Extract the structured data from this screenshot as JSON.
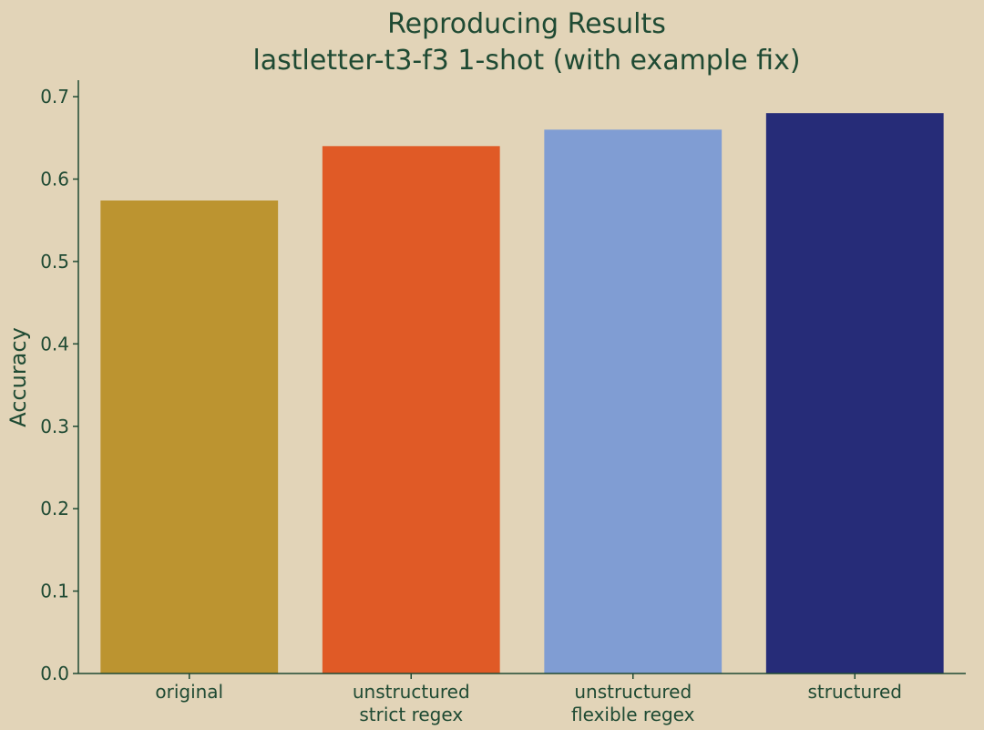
{
  "chart_data": {
    "type": "bar",
    "title": "Reproducing Results",
    "subtitle": "lastletter-t3-f3 1-shot (with example fix)",
    "xlabel": "",
    "ylabel": "Accuracy",
    "ylim": [
      0,
      0.72
    ],
    "yticks": [
      "0.0",
      "0.1",
      "0.2",
      "0.3",
      "0.4",
      "0.5",
      "0.6",
      "0.7"
    ],
    "ytick_values": [
      0.0,
      0.1,
      0.2,
      0.3,
      0.4,
      0.5,
      0.6,
      0.7
    ],
    "grid": false,
    "categories": [
      [
        "original"
      ],
      [
        "unstructured",
        "strict regex"
      ],
      [
        "unstructured",
        "flexible regex"
      ],
      [
        "structured"
      ]
    ],
    "values": [
      0.574,
      0.64,
      0.66,
      0.68
    ],
    "colors": [
      "#bc9430",
      "#e05a26",
      "#809dd3",
      "#262c78"
    ]
  },
  "style": {
    "background": "#e2d4b8",
    "text_color": "#1f4a33",
    "axis_color": "#1f4a33"
  }
}
